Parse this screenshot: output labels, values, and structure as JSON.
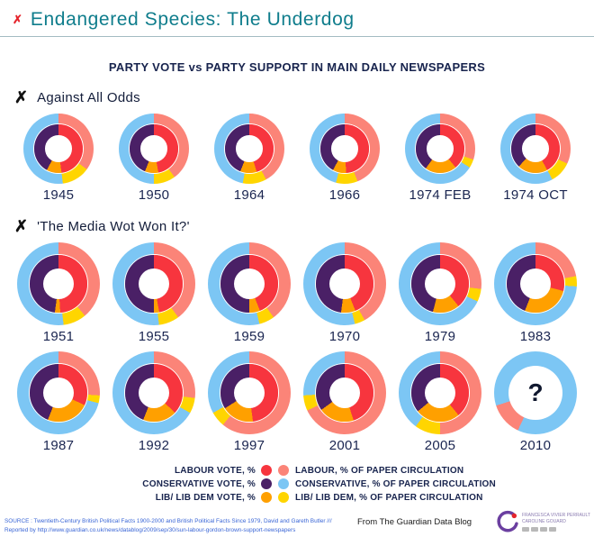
{
  "page": {
    "corner_mark": "✗",
    "title": "Endangered Species: The Underdog",
    "subtitle": "PARTY VOTE vs PARTY SUPPORT IN MAIN DAILY NEWSPAPERS"
  },
  "colors": {
    "vote": {
      "lab": "#f7353e",
      "con": "#4a2066",
      "lib": "#ffa000"
    },
    "papers": {
      "lab": "#fb8478",
      "con": "#7cc6f4",
      "lib": "#ffd500"
    },
    "title_teal": "#0f7d8c",
    "text_navy": "#1a2550"
  },
  "chart_data": {
    "type": "donut-grid",
    "description": "Double donut per election year. Inner ring = party share of vote (%), outer ring = share of national daily newspaper circulation backing each party (%). Segments run clockwise from top: Labour, Lib/Lib Dem, Conservative.",
    "sections": [
      {
        "marker": "✗",
        "heading": "Against All Odds",
        "charts": [
          {
            "year": "1945",
            "inner": [
              [
                "lab",
                48
              ],
              [
                "lib",
                10
              ],
              [
                "con",
                42
              ]
            ],
            "outer": [
              [
                "lab",
                35
              ],
              [
                "lib",
                13
              ],
              [
                "con",
                52
              ]
            ]
          },
          {
            "year": "1950",
            "inner": [
              [
                "lab",
                47
              ],
              [
                "lib",
                9
              ],
              [
                "con",
                44
              ]
            ],
            "outer": [
              [
                "lab",
                40
              ],
              [
                "lib",
                10
              ],
              [
                "con",
                50
              ]
            ]
          },
          {
            "year": "1964",
            "inner": [
              [
                "lab",
                45
              ],
              [
                "lib",
                11
              ],
              [
                "con",
                44
              ]
            ],
            "outer": [
              [
                "lab",
                42
              ],
              [
                "lib",
                11
              ],
              [
                "con",
                47
              ]
            ]
          },
          {
            "year": "1966",
            "inner": [
              [
                "lab",
                49
              ],
              [
                "lib",
                9
              ],
              [
                "con",
                42
              ]
            ],
            "outer": [
              [
                "lab",
                44
              ],
              [
                "lib",
                10
              ],
              [
                "con",
                46
              ]
            ]
          },
          {
            "year": "1974 FEB",
            "inner": [
              [
                "lab",
                39
              ],
              [
                "lib",
                21
              ],
              [
                "con",
                40
              ]
            ],
            "outer": [
              [
                "lab",
                30
              ],
              [
                "lib",
                4
              ],
              [
                "con",
                66
              ]
            ]
          },
          {
            "year": "1974 OCT",
            "inner": [
              [
                "lab",
                42
              ],
              [
                "lib",
                20
              ],
              [
                "con",
                38
              ]
            ],
            "outer": [
              [
                "lab",
                32
              ],
              [
                "lib",
                10
              ],
              [
                "con",
                58
              ]
            ]
          }
        ]
      },
      {
        "marker": "✗",
        "heading": "'The Media Wot Won It?'",
        "charts": [
          {
            "year": "1951",
            "inner": [
              [
                "lab",
                49
              ],
              [
                "lib",
                3
              ],
              [
                "con",
                48
              ]
            ],
            "outer": [
              [
                "lab",
                39
              ],
              [
                "lib",
                9
              ],
              [
                "con",
                52
              ]
            ]
          },
          {
            "year": "1955",
            "inner": [
              [
                "lab",
                47
              ],
              [
                "lib",
                3
              ],
              [
                "con",
                50
              ]
            ],
            "outer": [
              [
                "lab",
                40
              ],
              [
                "lib",
                8
              ],
              [
                "con",
                52
              ]
            ]
          },
          {
            "year": "1959",
            "inner": [
              [
                "lab",
                44
              ],
              [
                "lib",
                6
              ],
              [
                "con",
                50
              ]
            ],
            "outer": [
              [
                "lab",
                40
              ],
              [
                "lib",
                6
              ],
              [
                "con",
                54
              ]
            ]
          },
          {
            "year": "1970",
            "inner": [
              [
                "lab",
                44
              ],
              [
                "lib",
                8
              ],
              [
                "con",
                48
              ]
            ],
            "outer": [
              [
                "lab",
                42
              ],
              [
                "lib",
                4
              ],
              [
                "con",
                54
              ]
            ]
          },
          {
            "year": "1979",
            "inner": [
              [
                "lab",
                39
              ],
              [
                "lib",
                15
              ],
              [
                "con",
                46
              ]
            ],
            "outer": [
              [
                "lab",
                27
              ],
              [
                "lib",
                5
              ],
              [
                "con",
                68
              ]
            ]
          },
          {
            "year": "1983",
            "inner": [
              [
                "lab",
                29
              ],
              [
                "lib",
                27
              ],
              [
                "con",
                44
              ]
            ],
            "outer": [
              [
                "lab",
                22
              ],
              [
                "lib",
                4
              ],
              [
                "con",
                74
              ]
            ]
          },
          {
            "year": "1987",
            "inner": [
              [
                "lab",
                32
              ],
              [
                "lib",
                24
              ],
              [
                "con",
                44
              ]
            ],
            "outer": [
              [
                "lab",
                26
              ],
              [
                "lib",
                3
              ],
              [
                "con",
                71
              ]
            ]
          },
          {
            "year": "1992",
            "inner": [
              [
                "lab",
                37
              ],
              [
                "lib",
                19
              ],
              [
                "con",
                44
              ]
            ],
            "outer": [
              [
                "lab",
                27
              ],
              [
                "lib",
                6
              ],
              [
                "con",
                67
              ]
            ]
          },
          {
            "year": "1997",
            "inner": [
              [
                "lab",
                48
              ],
              [
                "lib",
                18
              ],
              [
                "con",
                34
              ]
            ],
            "outer": [
              [
                "lab",
                61
              ],
              [
                "lib",
                6
              ],
              [
                "con",
                33
              ]
            ]
          },
          {
            "year": "2001",
            "inner": [
              [
                "lab",
                45
              ],
              [
                "lib",
                20
              ],
              [
                "con",
                35
              ]
            ],
            "outer": [
              [
                "lab",
                68
              ],
              [
                "lib",
                6
              ],
              [
                "con",
                26
              ]
            ]
          },
          {
            "year": "2005",
            "inner": [
              [
                "lab",
                39
              ],
              [
                "lib",
                25
              ],
              [
                "con",
                36
              ]
            ],
            "outer": [
              [
                "lab",
                50
              ],
              [
                "lib",
                10
              ],
              [
                "con",
                40
              ]
            ]
          },
          {
            "year": "2010",
            "inner": [],
            "center": "?",
            "outer": [
              [
                "con",
                57
              ],
              [
                "lab",
                13
              ],
              [
                "con",
                30
              ]
            ]
          }
        ]
      }
    ]
  },
  "legend": {
    "rows": [
      {
        "left": "LABOUR VOTE, %",
        "left_key": "vote.lab",
        "right_key": "papers.lab",
        "right": "LABOUR, % OF PAPER CIRCULATION"
      },
      {
        "left": "CONSERVATIVE VOTE, %",
        "left_key": "vote.con",
        "right_key": "papers.con",
        "right": "CONSERVATIVE, % OF PAPER CIRCULATION"
      },
      {
        "left": "LIB/ LIB DEM VOTE, %",
        "left_key": "vote.lib",
        "right_key": "papers.lib",
        "right": "LIB/ LIB DEM, % OF PAPER CIRCULATION"
      }
    ]
  },
  "footer": {
    "source_line1": "SOURCE : Twentieth-Century British Political Facts 1900-2000 and British Political Facts Since 1979, David and Gareth Butler ///",
    "source_line2": "Reported by  http://www.guardian.co.uk/news/datablog/2009/sep/30/sun-labour-gordon-brown-support-newspapers",
    "attribution": "From The Guardian Data Blog",
    "credit_line1": "FRANCESCA VIVIER PERRAULT",
    "credit_line2": "CAROLINE GOUARD"
  }
}
